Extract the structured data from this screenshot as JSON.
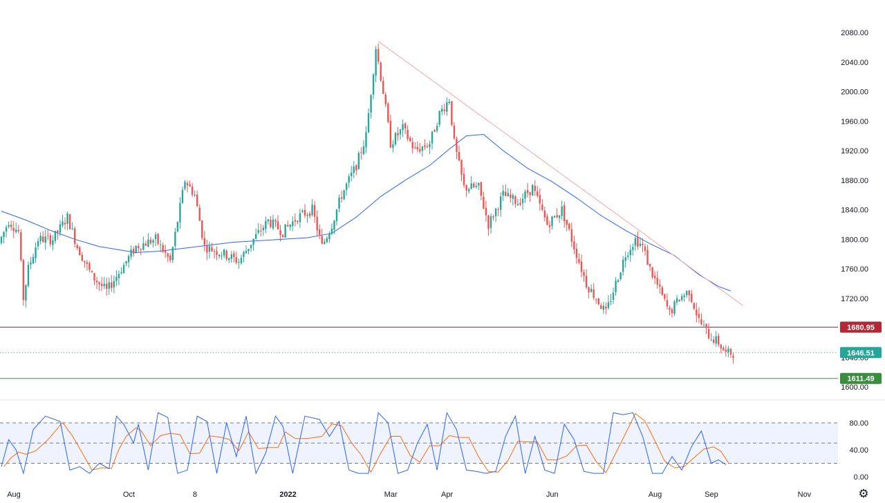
{
  "chart_data": {
    "type": "candlestick",
    "price_axis": {
      "ylim": [
        1600,
        2090
      ],
      "ticks": [
        "1600.00",
        "1640.00",
        "1680.00",
        "1720.00",
        "1760.00",
        "1800.00",
        "1840.00",
        "1880.00",
        "1920.00",
        "1960.00",
        "2000.00",
        "2040.00",
        "2080.00"
      ],
      "tick_values": [
        1600,
        1640,
        1680,
        1720,
        1760,
        1800,
        1840,
        1880,
        1920,
        1960,
        2000,
        2040,
        2080
      ]
    },
    "time_axis": {
      "labels": [
        {
          "text": "Aug",
          "bold": false
        },
        {
          "text": "Oct",
          "bold": false
        },
        {
          "text": "8",
          "bold": false
        },
        {
          "text": "2022",
          "bold": true
        },
        {
          "text": "Mar",
          "bold": false
        },
        {
          "text": "Apr",
          "bold": false
        },
        {
          "text": "Jun",
          "bold": false
        },
        {
          "text": "Aug",
          "bold": false
        },
        {
          "text": "Sep",
          "bold": false
        },
        {
          "text": "Nov",
          "bold": false
        }
      ],
      "label_bars": [
        0,
        47,
        74,
        112,
        154,
        177,
        220,
        262,
        285,
        323
      ],
      "total_bars": 330,
      "data_bars": 300
    },
    "horizontal_levels": [
      {
        "label": "1680.95",
        "value": 1680.95,
        "color": "#b22833"
      },
      {
        "label": "1646.51",
        "value": 1646.51,
        "color": "#26a69a",
        "style": "dotted"
      },
      {
        "label": "1611.49",
        "value": 1611.49,
        "color": "#388e3c"
      }
    ],
    "trendline": {
      "points": [
        {
          "bar": 154,
          "value": 2068
        },
        {
          "bar": 303,
          "value": 1710
        }
      ],
      "color": "#f4a6a6"
    },
    "moving_average": {
      "color": "#2962ff",
      "points": [
        [
          0,
          1838
        ],
        [
          10,
          1826
        ],
        [
          20,
          1812
        ],
        [
          30,
          1800
        ],
        [
          40,
          1790
        ],
        [
          55,
          1782
        ],
        [
          65,
          1784
        ],
        [
          75,
          1788
        ],
        [
          85,
          1792
        ],
        [
          95,
          1796
        ],
        [
          105,
          1798
        ],
        [
          115,
          1800
        ],
        [
          125,
          1802
        ],
        [
          135,
          1808
        ],
        [
          145,
          1830
        ],
        [
          155,
          1858
        ],
        [
          165,
          1880
        ],
        [
          175,
          1900
        ],
        [
          183,
          1922
        ],
        [
          190,
          1940
        ],
        [
          197,
          1942
        ],
        [
          205,
          1920
        ],
        [
          215,
          1896
        ],
        [
          225,
          1878
        ],
        [
          235,
          1856
        ],
        [
          245,
          1832
        ],
        [
          255,
          1812
        ],
        [
          265,
          1794
        ],
        [
          275,
          1778
        ],
        [
          285,
          1752
        ],
        [
          293,
          1736
        ],
        [
          298,
          1730
        ]
      ]
    },
    "price_path": [
      [
        0,
        1795
      ],
      [
        4,
        1825
      ],
      [
        8,
        1810
      ],
      [
        10,
        1720
      ],
      [
        12,
        1760
      ],
      [
        16,
        1800
      ],
      [
        22,
        1800
      ],
      [
        28,
        1830
      ],
      [
        32,
        1790
      ],
      [
        38,
        1750
      ],
      [
        44,
        1730
      ],
      [
        50,
        1760
      ],
      [
        56,
        1790
      ],
      [
        64,
        1800
      ],
      [
        70,
        1770
      ],
      [
        76,
        1880
      ],
      [
        80,
        1860
      ],
      [
        84,
        1790
      ],
      [
        92,
        1780
      ],
      [
        98,
        1770
      ],
      [
        104,
        1800
      ],
      [
        110,
        1825
      ],
      [
        116,
        1810
      ],
      [
        122,
        1830
      ],
      [
        128,
        1840
      ],
      [
        132,
        1790
      ],
      [
        136,
        1820
      ],
      [
        140,
        1860
      ],
      [
        146,
        1900
      ],
      [
        150,
        1940
      ],
      [
        152,
        2000
      ],
      [
        154,
        2060
      ],
      [
        157,
        2000
      ],
      [
        160,
        1930
      ],
      [
        165,
        1950
      ],
      [
        170,
        1920
      ],
      [
        176,
        1930
      ],
      [
        180,
        1970
      ],
      [
        184,
        1990
      ],
      [
        186,
        1930
      ],
      [
        190,
        1870
      ],
      [
        196,
        1870
      ],
      [
        200,
        1820
      ],
      [
        206,
        1860
      ],
      [
        212,
        1850
      ],
      [
        218,
        1870
      ],
      [
        224,
        1820
      ],
      [
        230,
        1840
      ],
      [
        236,
        1780
      ],
      [
        240,
        1740
      ],
      [
        244,
        1720
      ],
      [
        248,
        1700
      ],
      [
        252,
        1740
      ],
      [
        256,
        1780
      ],
      [
        260,
        1800
      ],
      [
        263,
        1790
      ],
      [
        266,
        1760
      ],
      [
        270,
        1730
      ],
      [
        274,
        1700
      ],
      [
        278,
        1720
      ],
      [
        282,
        1730
      ],
      [
        286,
        1690
      ],
      [
        290,
        1670
      ],
      [
        294,
        1660
      ],
      [
        297,
        1645
      ],
      [
        299,
        1646
      ]
    ],
    "stochastic": {
      "ylim": [
        0,
        100
      ],
      "ticks": [
        "0.00",
        "40.00",
        "80.00"
      ],
      "tick_values": [
        0,
        40,
        80
      ],
      "band": [
        20,
        80
      ],
      "fast_color": "#2962ff",
      "slow_color": "#ff6d00",
      "k": [
        [
          0,
          15
        ],
        [
          3,
          55
        ],
        [
          6,
          40
        ],
        [
          9,
          5
        ],
        [
          13,
          70
        ],
        [
          18,
          90
        ],
        [
          24,
          82
        ],
        [
          28,
          10
        ],
        [
          32,
          15
        ],
        [
          36,
          5
        ],
        [
          40,
          20
        ],
        [
          44,
          12
        ],
        [
          47,
          90
        ],
        [
          50,
          78
        ],
        [
          54,
          50
        ],
        [
          56,
          78
        ],
        [
          60,
          10
        ],
        [
          64,
          95
        ],
        [
          68,
          88
        ],
        [
          72,
          5
        ],
        [
          76,
          10
        ],
        [
          80,
          90
        ],
        [
          84,
          82
        ],
        [
          88,
          5
        ],
        [
          92,
          80
        ],
        [
          96,
          30
        ],
        [
          100,
          90
        ],
        [
          104,
          5
        ],
        [
          108,
          35
        ],
        [
          112,
          90
        ],
        [
          115,
          75
        ],
        [
          119,
          5
        ],
        [
          124,
          90
        ],
        [
          130,
          85
        ],
        [
          134,
          60
        ],
        [
          138,
          82
        ],
        [
          142,
          10
        ],
        [
          146,
          5
        ],
        [
          150,
          5
        ],
        [
          154,
          95
        ],
        [
          158,
          80
        ],
        [
          162,
          5
        ],
        [
          166,
          10
        ],
        [
          170,
          50
        ],
        [
          174,
          78
        ],
        [
          178,
          10
        ],
        [
          182,
          95
        ],
        [
          186,
          70
        ],
        [
          190,
          10
        ],
        [
          194,
          8
        ],
        [
          198,
          5
        ],
        [
          202,
          8
        ],
        [
          206,
          60
        ],
        [
          210,
          90
        ],
        [
          214,
          5
        ],
        [
          218,
          60
        ],
        [
          222,
          10
        ],
        [
          226,
          5
        ],
        [
          230,
          78
        ],
        [
          234,
          55
        ],
        [
          238,
          8
        ],
        [
          242,
          5
        ],
        [
          246,
          5
        ],
        [
          250,
          95
        ],
        [
          254,
          92
        ],
        [
          258,
          95
        ],
        [
          262,
          60
        ],
        [
          266,
          5
        ],
        [
          270,
          5
        ],
        [
          274,
          30
        ],
        [
          278,
          10
        ],
        [
          282,
          45
        ],
        [
          286,
          68
        ],
        [
          290,
          20
        ],
        [
          293,
          25
        ],
        [
          296,
          18
        ]
      ]
    }
  }
}
